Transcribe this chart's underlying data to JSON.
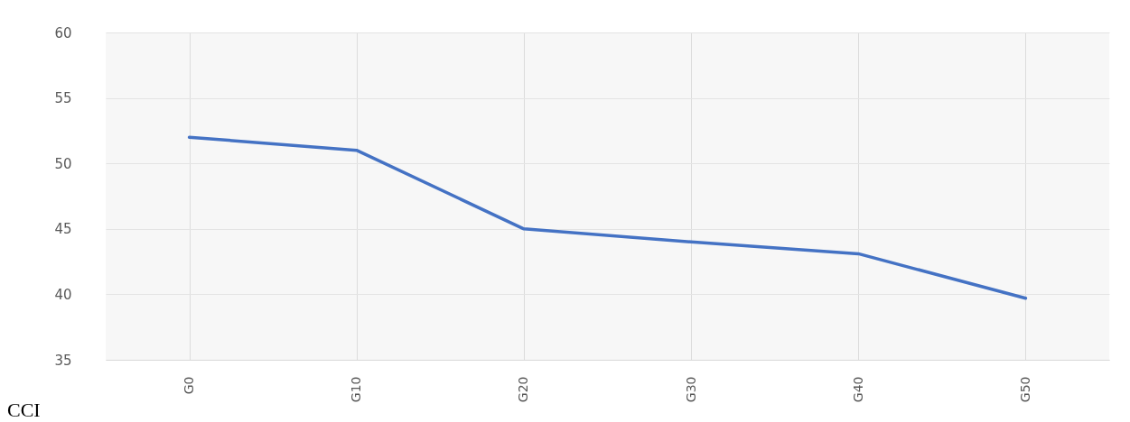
{
  "chart_data": {
    "type": "line",
    "categories": [
      "G0",
      "G10",
      "G20",
      "G30",
      "G40",
      "G50"
    ],
    "series": [
      {
        "color": "#4472c4",
        "values": [
          52,
          51,
          45,
          44,
          43.1,
          39.7
        ]
      }
    ],
    "ylim": [
      35,
      60
    ],
    "yticks": [
      35,
      40,
      45,
      50,
      55,
      60
    ],
    "grid": true,
    "marker": "none",
    "line_style": "solid",
    "annotations": [
      "CCI"
    ]
  }
}
